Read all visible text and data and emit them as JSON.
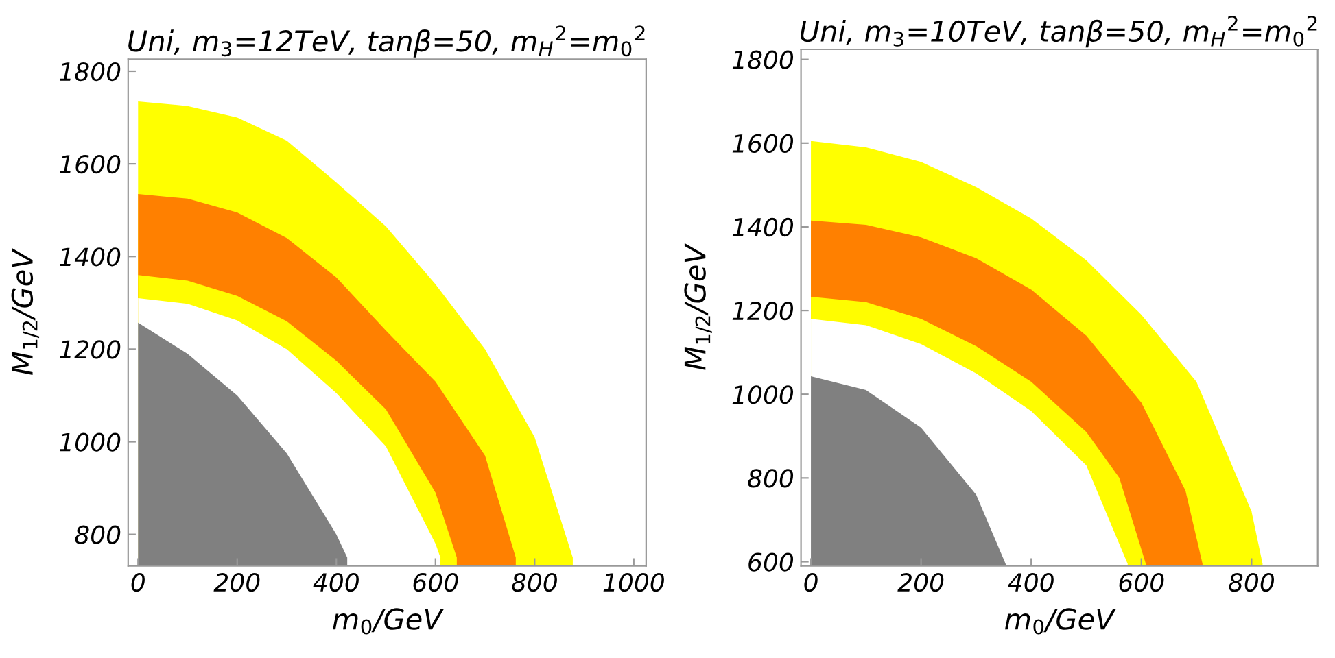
{
  "chart_data": [
    {
      "type": "area",
      "title": "Uni, m$_{3}$=12TeV, tanβ=50, m$_{H}$$^{2}$=m$_{0}$$^{2}$",
      "xlabel": "m$_{0}$/GeV",
      "ylabel": "M$_{1/2}$/GeV",
      "xlim": [
        -20,
        1025
      ],
      "ylim": [
        732,
        1826
      ],
      "xticks": [
        0,
        200,
        400,
        600,
        800,
        1000
      ],
      "yticks": [
        800,
        1000,
        1200,
        1400,
        1600,
        1800
      ],
      "grid": false,
      "series": [
        {
          "color": "#ffff00",
          "x": [
            0,
            100,
            200,
            300,
            400,
            500,
            600,
            700,
            800,
            877
          ],
          "values": [
            1735,
            1725,
            1700,
            1650,
            1560,
            1465,
            1340,
            1200,
            1010,
            750
          ]
        },
        {
          "color": "#ff8000",
          "x": [
            0,
            100,
            200,
            300,
            400,
            500,
            600,
            700,
            762
          ],
          "values": [
            1535,
            1525,
            1495,
            1440,
            1355,
            1240,
            1130,
            970,
            750
          ]
        },
        {
          "color": "#fffd00",
          "x": [
            0,
            100,
            200,
            300,
            400,
            500,
            600,
            643
          ],
          "values": [
            1360,
            1348,
            1315,
            1260,
            1175,
            1070,
            890,
            750
          ]
        },
        {
          "color": "#ffffff",
          "x": [
            0,
            100,
            200,
            300,
            400,
            500,
            600,
            610
          ],
          "values": [
            1310,
            1298,
            1262,
            1200,
            1105,
            990,
            780,
            750
          ]
        },
        {
          "color": "#808080",
          "x": [
            0,
            100,
            200,
            300,
            400,
            422
          ],
          "values": [
            1257,
            1190,
            1100,
            975,
            800,
            750
          ]
        }
      ]
    },
    {
      "type": "area",
      "title": "Uni, m$_{3}$=10TeV, tanβ=50, m$_{H}$$^{2}$=m$_{0}$$^{2}$",
      "xlabel": "m$_{0}$/GeV",
      "ylabel": "M$_{1/2}$/GeV",
      "xlim": [
        -18,
        920
      ],
      "ylim": [
        590,
        1824
      ],
      "xticks": [
        0,
        200,
        400,
        600,
        800
      ],
      "yticks": [
        600,
        800,
        1000,
        1200,
        1400,
        1600,
        1800
      ],
      "grid": false,
      "series": [
        {
          "color": "#ffff00",
          "x": [
            0,
            100,
            200,
            300,
            400,
            500,
            600,
            700,
            800,
            820
          ],
          "values": [
            1605,
            1590,
            1555,
            1495,
            1420,
            1320,
            1190,
            1030,
            720,
            595
          ]
        },
        {
          "color": "#ff8000",
          "x": [
            0,
            100,
            200,
            300,
            400,
            500,
            600,
            680,
            711
          ],
          "values": [
            1415,
            1405,
            1375,
            1325,
            1250,
            1140,
            980,
            770,
            595
          ]
        },
        {
          "color": "#fffd00",
          "x": [
            0,
            100,
            200,
            300,
            400,
            500,
            560,
            608
          ],
          "values": [
            1233,
            1220,
            1180,
            1115,
            1030,
            910,
            800,
            595
          ]
        },
        {
          "color": "#ffffff",
          "x": [
            0,
            100,
            200,
            300,
            400,
            500,
            575
          ],
          "values": [
            1180,
            1165,
            1120,
            1050,
            960,
            830,
            595
          ]
        },
        {
          "color": "#808080",
          "x": [
            0,
            100,
            200,
            300,
            355
          ],
          "values": [
            1043,
            1010,
            920,
            760,
            590
          ]
        }
      ]
    }
  ]
}
